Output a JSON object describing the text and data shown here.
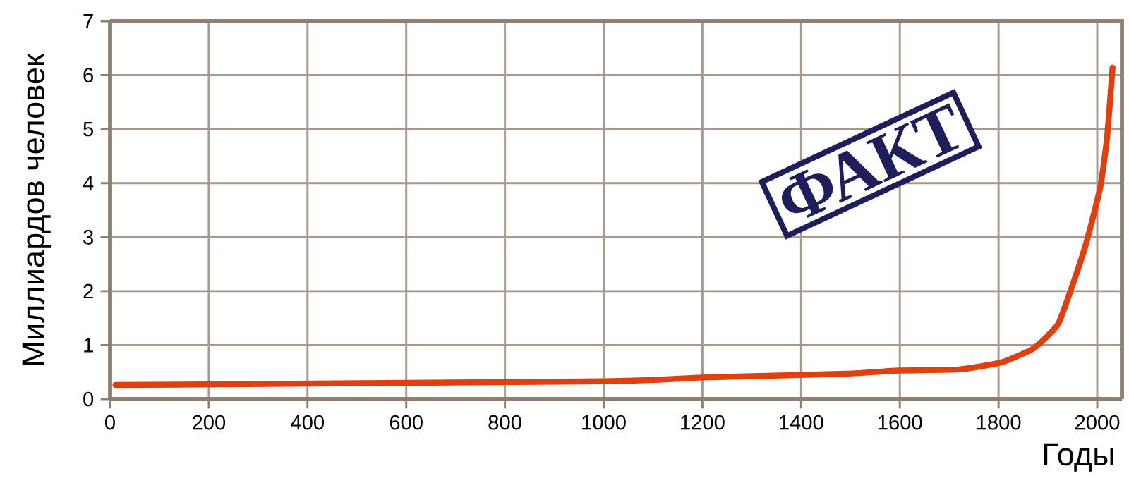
{
  "chart_data": {
    "type": "line",
    "xlabel": "Годы",
    "ylabel": "Миллиардов человек",
    "annotations": [
      "ФАКТ"
    ],
    "x": [
      11,
      1000,
      1200,
      1491,
      1600,
      1720,
      1806,
      1871,
      1920,
      1949,
      1977,
      2006,
      2020,
      2031
    ],
    "series": [
      {
        "color": "#e04010",
        "values": [
          0.26,
          0.33,
          0.4,
          0.47,
          0.53,
          0.55,
          0.68,
          0.94,
          1.38,
          2.09,
          2.87,
          3.92,
          4.86,
          6.14
        ]
      }
    ],
    "xlim": [
      0,
      2050
    ],
    "ylim": [
      0,
      7
    ],
    "xticks": [
      0,
      200,
      400,
      600,
      800,
      1000,
      1200,
      1400,
      1600,
      1800,
      2000
    ],
    "yticks": [
      0,
      1,
      2,
      3,
      4,
      5,
      6,
      7
    ],
    "grid": true,
    "marker": "none",
    "line_style": "solid"
  }
}
